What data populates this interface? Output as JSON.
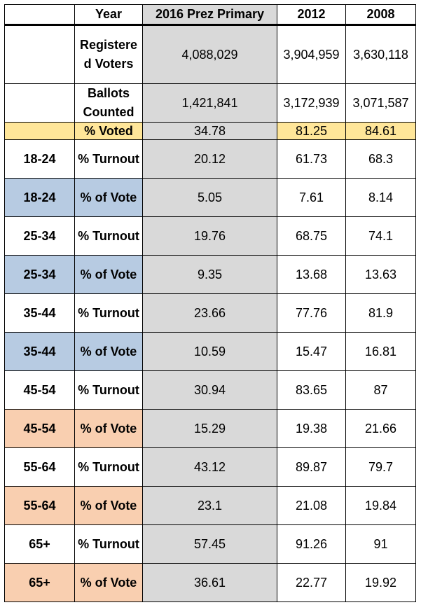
{
  "chart_data": {
    "type": "table",
    "columns": [
      "",
      "Year",
      "2016 Prez Primary",
      "2012",
      "2008"
    ],
    "rows": [
      {
        "group": "",
        "metric": "Registere\nd Voters",
        "values": [
          "4,088,029",
          "3,904,959",
          "3,630,118"
        ]
      },
      {
        "group": "",
        "metric": "Ballots\nCounted",
        "values": [
          "1,421,841",
          "3,172,939",
          "3,071,587"
        ]
      },
      {
        "group": "",
        "metric": "% Voted",
        "values": [
          "34.78",
          "81.25",
          "84.61"
        ]
      },
      {
        "group": "18-24",
        "metric": "% Turnout",
        "values": [
          "20.12",
          "61.73",
          "68.3"
        ]
      },
      {
        "group": "18-24",
        "metric": "% of Vote",
        "values": [
          "5.05",
          "7.61",
          "8.14"
        ]
      },
      {
        "group": "25-34",
        "metric": "% Turnout",
        "values": [
          "19.76",
          "68.75",
          "74.1"
        ]
      },
      {
        "group": "25-34",
        "metric": "% of Vote",
        "values": [
          "9.35",
          "13.68",
          "13.63"
        ]
      },
      {
        "group": "35-44",
        "metric": "% Turnout",
        "values": [
          "23.66",
          "77.76",
          "81.9"
        ]
      },
      {
        "group": "35-44",
        "metric": "% of Vote",
        "values": [
          "10.59",
          "15.47",
          "16.81"
        ]
      },
      {
        "group": "45-54",
        "metric": "% Turnout",
        "values": [
          "30.94",
          "83.65",
          "87"
        ]
      },
      {
        "group": "45-54",
        "metric": "% of Vote",
        "values": [
          "15.29",
          "19.38",
          "21.66"
        ]
      },
      {
        "group": "55-64",
        "metric": "% Turnout",
        "values": [
          "43.12",
          "89.87",
          "79.7"
        ]
      },
      {
        "group": "55-64",
        "metric": "% of Vote",
        "values": [
          "23.1",
          "21.08",
          "19.84"
        ]
      },
      {
        "group": "65+",
        "metric": "% Turnout",
        "values": [
          "57.45",
          "91.26",
          "91"
        ]
      },
      {
        "group": "65+",
        "metric": "% of Vote",
        "values": [
          "36.61",
          "22.77",
          "19.92"
        ]
      }
    ]
  },
  "colors": {
    "prez_column": "#d9d9d9",
    "voted_row": "#ffe699",
    "blue_group": "#b7cbe2",
    "peach_group": "#f9cfb0"
  }
}
